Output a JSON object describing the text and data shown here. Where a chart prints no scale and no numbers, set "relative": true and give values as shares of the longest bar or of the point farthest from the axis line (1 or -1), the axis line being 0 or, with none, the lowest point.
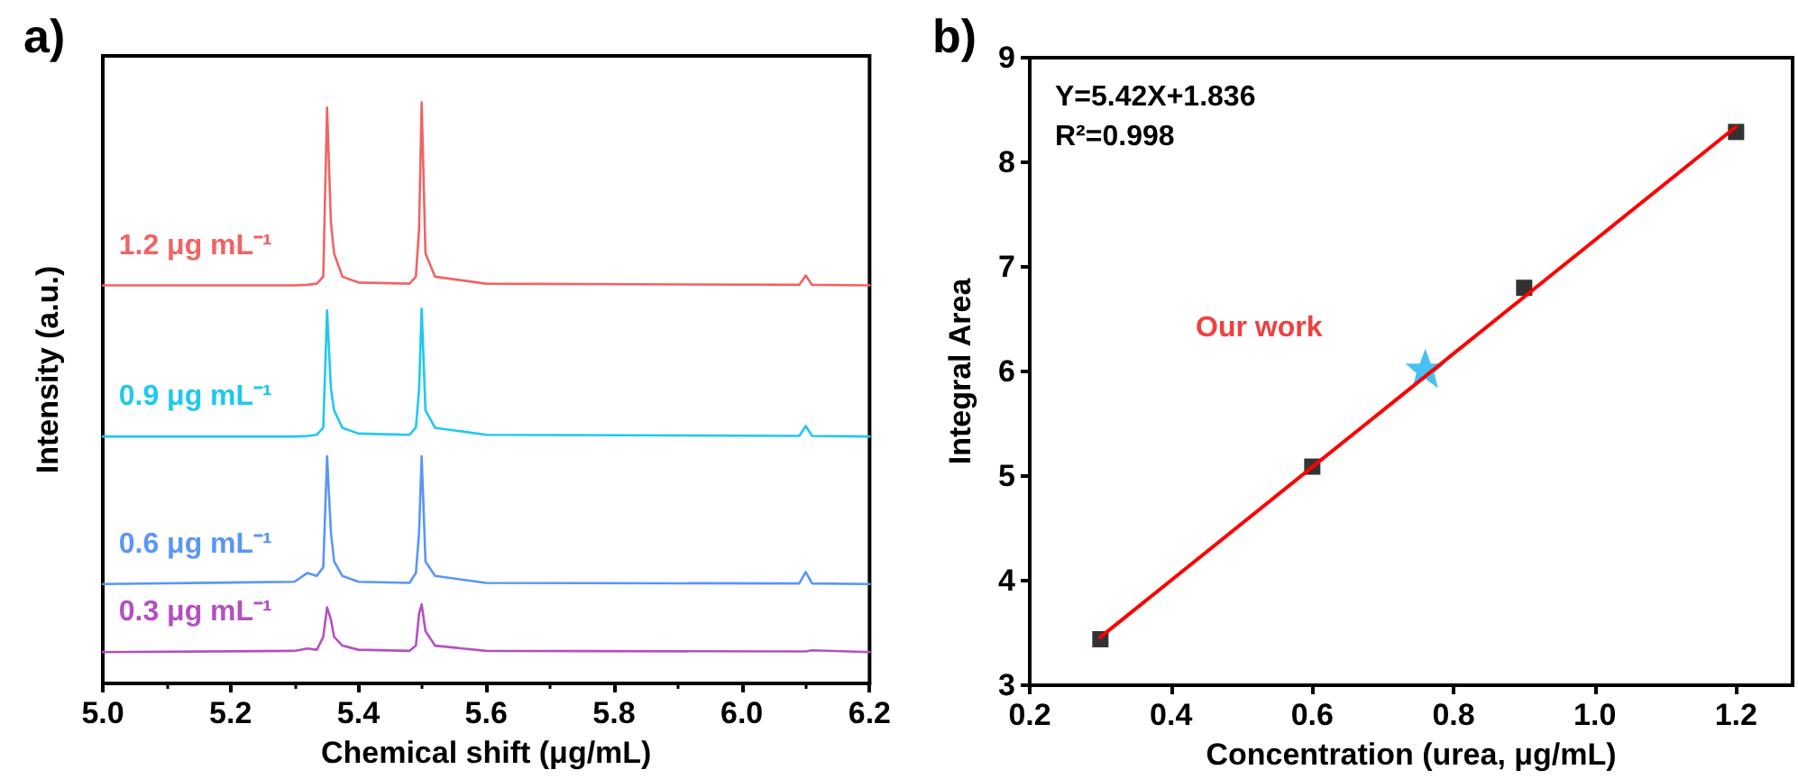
{
  "chart_data": [
    {
      "type": "line",
      "title": "a)",
      "xlabel": "Chemical shift (μg/mL)",
      "ylabel": "Intensity (a.u.)",
      "relative": true,
      "marker": "none",
      "grid": false,
      "legend": false,
      "xlim": [
        5.0,
        6.2
      ],
      "xticks": [
        {
          "value": 5.0,
          "label": "5.0"
        },
        {
          "value": 5.2,
          "label": "5.2"
        },
        {
          "value": 5.4,
          "label": "5.4"
        },
        {
          "value": 5.6,
          "label": "5.6"
        },
        {
          "value": 5.8,
          "label": "5.8"
        },
        {
          "value": 6.0,
          "label": "6.0"
        },
        {
          "value": 6.2,
          "label": "6.2"
        }
      ],
      "x": [
        5.0,
        5.3,
        5.32,
        5.335,
        5.345,
        5.351,
        5.357,
        5.362,
        5.375,
        5.4,
        5.48,
        5.49,
        5.495,
        5.499,
        5.505,
        5.52,
        5.6,
        6.09,
        6.1,
        6.11,
        6.2
      ],
      "series": [
        {
          "name": "1.2 μg mL⁻¹",
          "color": "#f06464",
          "values": [
            0.685,
            0.685,
            0.686,
            0.688,
            0.7,
            0.991,
            0.793,
            0.74,
            0.7,
            0.69,
            0.688,
            0.7,
            0.784,
            1.0,
            0.74,
            0.7,
            0.688,
            0.686,
            0.702,
            0.686,
            0.685
          ]
        },
        {
          "name": "0.9 μg mL⁻¹",
          "color": "#1ec8f0",
          "values": [
            0.425,
            0.425,
            0.426,
            0.428,
            0.44,
            0.642,
            0.507,
            0.47,
            0.44,
            0.43,
            0.428,
            0.44,
            0.507,
            0.645,
            0.47,
            0.44,
            0.428,
            0.426,
            0.443,
            0.426,
            0.425
          ]
        },
        {
          "name": "0.6 μg mL⁻¹",
          "color": "#5a96f5",
          "values": [
            0.171,
            0.175,
            0.19,
            0.185,
            0.2,
            0.391,
            0.26,
            0.21,
            0.185,
            0.175,
            0.173,
            0.19,
            0.26,
            0.391,
            0.21,
            0.185,
            0.173,
            0.172,
            0.192,
            0.172,
            0.171
          ]
        },
        {
          "name": "0.3 μg mL⁻¹",
          "color": "#b450c0",
          "values": [
            0.054,
            0.056,
            0.06,
            0.058,
            0.08,
            0.131,
            0.11,
            0.08,
            0.065,
            0.058,
            0.056,
            0.065,
            0.12,
            0.136,
            0.09,
            0.065,
            0.056,
            0.055,
            0.055,
            0.057,
            0.054
          ]
        }
      ]
    },
    {
      "type": "scatter",
      "title": "b)",
      "xlabel": "Concentration (urea, μg/mL)",
      "ylabel": "Integral Area",
      "grid": false,
      "legend": false,
      "xlim": [
        0.2,
        1.28
      ],
      "xticks": [
        0.2,
        0.4,
        0.6,
        0.8,
        {
          "value": 1.0,
          "label": "1.0"
        },
        1.2
      ],
      "ylim": [
        3,
        9
      ],
      "yticks": [
        3,
        4,
        5,
        6,
        7,
        8,
        9
      ],
      "annotations": [
        "Y=5.42X+1.836",
        "R²=0.998",
        "Our work"
      ],
      "series": [
        {
          "type": "scatter",
          "marker": "square",
          "color": "#000000",
          "x": [
            0.3,
            0.6,
            0.9,
            1.2
          ],
          "values": [
            3.44,
            5.09,
            6.8,
            8.29
          ]
        },
        {
          "type": "line",
          "marker": "none",
          "color": "#ff0000",
          "x": [
            0.3,
            1.2
          ],
          "values": [
            3.46,
            8.34
          ]
        },
        {
          "type": "scatter",
          "marker": "star",
          "color": "#1ab0f0",
          "x": [
            0.76
          ],
          "values": [
            6.03
          ]
        }
      ]
    }
  ]
}
